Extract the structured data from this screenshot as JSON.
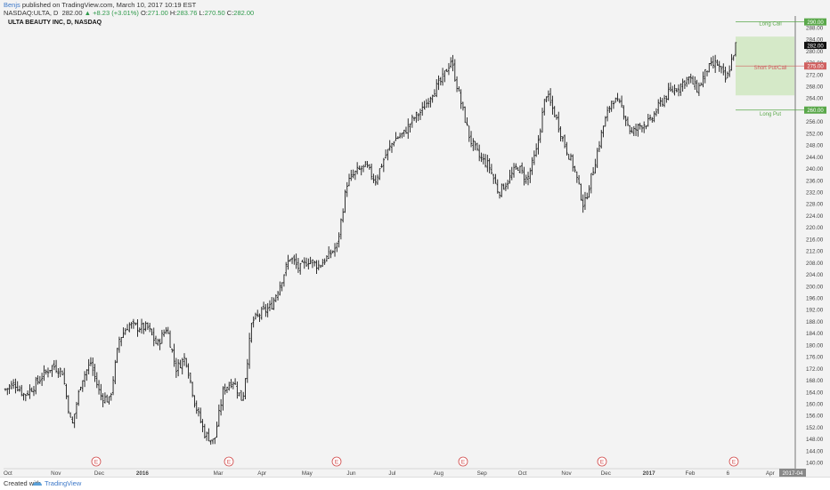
{
  "header": {
    "author": "Benjs",
    "published": "published on TradingView.com, March 10, 2017 10:19 EST",
    "symbol": "NASDAQ:ULTA, D",
    "last": "282.00",
    "change_symbol": "▲",
    "change": "+8.23 (+3.01%)",
    "o_label": "O:",
    "o": "271.00",
    "h_label": "H:",
    "h": "283.76",
    "l_label": "L:",
    "l": "270.50",
    "c_label": "C:",
    "c": "282.00"
  },
  "chart_title": "ULTA BEAUTY INC, D, NASDAQ",
  "footer": {
    "created": "Created with",
    "brand": "TradingView"
  },
  "colors": {
    "background": "#f3f3f3",
    "bars": "#1a1a1a",
    "zone_fill": "#cfe6c0",
    "long_call": "#5aa84a",
    "short_put_call": "#d06060",
    "long_put": "#5aa84a",
    "earnings": "#d04848",
    "axis_text": "#444444"
  },
  "chart_data": {
    "type": "ohlc",
    "title": "ULTA BEAUTY INC, D, NASDAQ",
    "xlabel": "",
    "ylabel": "",
    "ylim": [
      138,
      292
    ],
    "y_ticks": [
      140,
      144,
      148,
      152,
      156,
      160,
      164,
      168,
      172,
      176,
      180,
      184,
      188,
      192,
      196,
      200,
      204,
      208,
      212,
      216,
      220,
      224,
      228,
      232,
      236,
      240,
      244,
      248,
      252,
      256,
      260,
      264,
      268,
      272,
      276,
      280,
      284,
      288
    ],
    "x_labels": [
      "Oct",
      "Nov",
      "Dec",
      "2016",
      "Mar",
      "Apr",
      "May",
      "Jun",
      "Jul",
      "Aug",
      "Sep",
      "Oct",
      "Nov",
      "Dec",
      "2017",
      "Feb",
      "6",
      "Apr",
      "2017-04"
    ],
    "bold_x_labels": [
      "2016",
      "2017",
      "2017-04"
    ],
    "earnings_marker": "E",
    "earnings_labels": [
      "Dec",
      "Mar",
      "Jun",
      "Aug",
      "Dec",
      "Mar"
    ],
    "levels": [
      {
        "name": "Long Call",
        "price": 290.0,
        "label": "290.00"
      },
      {
        "name": "Short Put/Call",
        "price": 275.0,
        "label": "275.00"
      },
      {
        "name": "Long Put",
        "price": 260.0,
        "label": "260.00"
      }
    ],
    "last_price": {
      "price": 282.0,
      "label": "282.00"
    },
    "zone": {
      "top": 285,
      "bottom": 265
    },
    "price_path": [
      [
        "Oct",
        165
      ],
      [
        "Oct",
        167
      ],
      [
        "Oct",
        163
      ],
      [
        "Oct",
        166
      ],
      [
        "Oct",
        170
      ],
      [
        "Nov",
        173
      ],
      [
        "Nov",
        171
      ],
      [
        "Nov",
        152
      ],
      [
        "Nov",
        168
      ],
      [
        "Nov",
        174
      ],
      [
        "Nov",
        163
      ],
      [
        "Dec",
        161
      ],
      [
        "Dec",
        182
      ],
      [
        "Dec",
        187
      ],
      [
        "Dec",
        186
      ],
      [
        "2016",
        186
      ],
      [
        "2016",
        180
      ],
      [
        "2016",
        186
      ],
      [
        "2016",
        172
      ],
      [
        "2016",
        176
      ],
      [
        "2016",
        160
      ],
      [
        "2016",
        150
      ],
      [
        "2016",
        147
      ],
      [
        "Mar",
        165
      ],
      [
        "Mar",
        168
      ],
      [
        "Mar",
        161
      ],
      [
        "Mar",
        188
      ],
      [
        "Mar",
        191
      ],
      [
        "Apr",
        193
      ],
      [
        "Apr",
        201
      ],
      [
        "Apr",
        210
      ],
      [
        "Apr",
        206
      ],
      [
        "May",
        209
      ],
      [
        "May",
        207
      ],
      [
        "May",
        210
      ],
      [
        "May",
        214
      ],
      [
        "Jun",
        235
      ],
      [
        "Jun",
        239
      ],
      [
        "Jun",
        241
      ],
      [
        "Jun",
        236
      ],
      [
        "Jun",
        244
      ],
      [
        "Jun",
        250
      ],
      [
        "Jul",
        252
      ],
      [
        "Jul",
        257
      ],
      [
        "Jul",
        260
      ],
      [
        "Jul",
        266
      ],
      [
        "Aug",
        270
      ],
      [
        "Aug",
        277
      ],
      [
        "Aug",
        263
      ],
      [
        "Aug",
        250
      ],
      [
        "Sep",
        244
      ],
      [
        "Sep",
        241
      ],
      [
        "Sep",
        232
      ],
      [
        "Sep",
        236
      ],
      [
        "Sep",
        241
      ],
      [
        "Oct",
        236
      ],
      [
        "Oct",
        246
      ],
      [
        "Oct",
        266
      ],
      [
        "Oct",
        258
      ],
      [
        "Oct",
        248
      ],
      [
        "Nov",
        240
      ],
      [
        "Nov",
        227
      ],
      [
        "Nov",
        240
      ],
      [
        "Nov",
        254
      ],
      [
        "Dec",
        264
      ],
      [
        "Dec",
        261
      ],
      [
        "Dec",
        252
      ],
      [
        "Dec",
        255
      ],
      [
        "2017",
        256
      ],
      [
        "2017",
        262
      ],
      [
        "2017",
        266
      ],
      [
        "2017",
        268
      ],
      [
        "Feb",
        271
      ],
      [
        "Feb",
        267
      ],
      [
        "Feb",
        274
      ],
      [
        "6",
        276
      ],
      [
        "6",
        270
      ],
      [
        "6",
        282
      ]
    ]
  }
}
